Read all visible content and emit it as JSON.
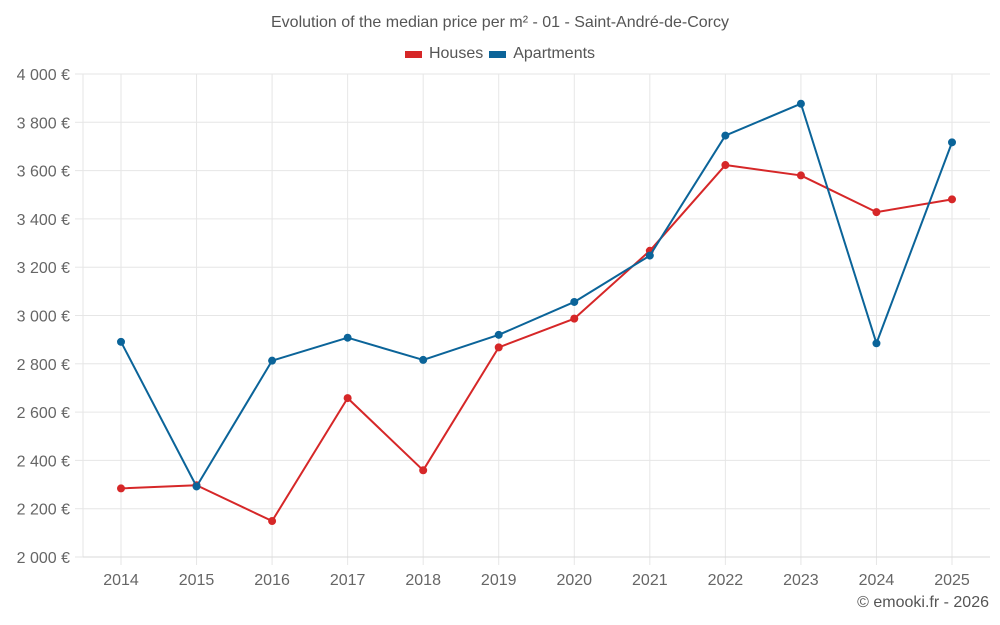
{
  "chart_data": {
    "type": "line",
    "title": "Evolution of the median price per m² - 01 - Saint-André-de-Corcy",
    "xlabel": "",
    "ylabel": "",
    "categories": [
      "2014",
      "2015",
      "2016",
      "2017",
      "2018",
      "2019",
      "2020",
      "2021",
      "2022",
      "2023",
      "2024",
      "2025"
    ],
    "y_ticks": [
      "2 000 €",
      "2 200 €",
      "2 400 €",
      "2 600 €",
      "2 800 €",
      "3 000 €",
      "3 200 €",
      "3 400 €",
      "3 600 €",
      "3 800 €",
      "4 000 €"
    ],
    "ylim": [
      2000,
      4000
    ],
    "y_tick_step": 200,
    "grid": true,
    "legend_position": "top-center",
    "series": [
      {
        "name": "Houses",
        "color": "#d62728",
        "values": [
          2284,
          2297,
          2149,
          2658,
          2359,
          2868,
          2987,
          3268,
          3623,
          3580,
          3428,
          3481
        ]
      },
      {
        "name": "Apartments",
        "color": "#0b6499",
        "values": [
          2891,
          2292,
          2813,
          2908,
          2816,
          2920,
          3056,
          3248,
          3745,
          3877,
          2885,
          3717
        ]
      }
    ]
  },
  "credit": "© emooki.fr - 2026"
}
